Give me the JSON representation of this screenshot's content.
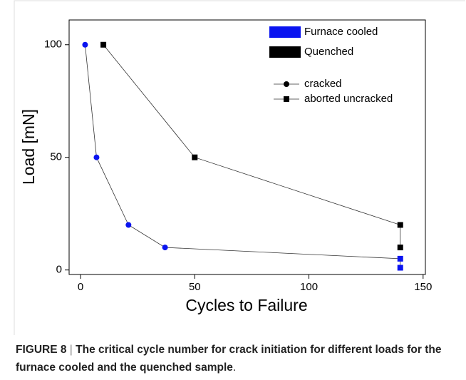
{
  "chart_data": {
    "type": "scatter",
    "x_label": "Cycles to Failure",
    "y_label": "Load [mN]",
    "xlim": [
      -5,
      151
    ],
    "ylim": [
      -2,
      111
    ],
    "xticks": [
      0,
      50,
      100,
      150
    ],
    "yticks": [
      0,
      50,
      100
    ],
    "line_color": "#333333",
    "series": [
      {
        "name": "Furnace cooled",
        "color": "#0a14f0",
        "x": [
          2,
          7,
          21,
          37,
          140,
          140
        ],
        "values": [
          100,
          50,
          20,
          10,
          5,
          1
        ],
        "markers": [
          "circle",
          "circle",
          "circle",
          "circle",
          "square",
          "square"
        ]
      },
      {
        "name": "Quenched",
        "color": "#000000",
        "x": [
          10,
          50,
          140,
          140
        ],
        "values": [
          100,
          50,
          20,
          10
        ],
        "markers": [
          "square",
          "square",
          "square",
          "square"
        ]
      }
    ],
    "marker_legend": [
      {
        "name": "cracked",
        "marker": "circle"
      },
      {
        "name": "aborted uncracked",
        "marker": "square"
      }
    ],
    "caption": {
      "label": "FIGURE 8",
      "separator": "|",
      "text": "The critical cycle number for crack initiation for different loads for the furnace cooled and the quenched sample",
      "end": "."
    }
  }
}
